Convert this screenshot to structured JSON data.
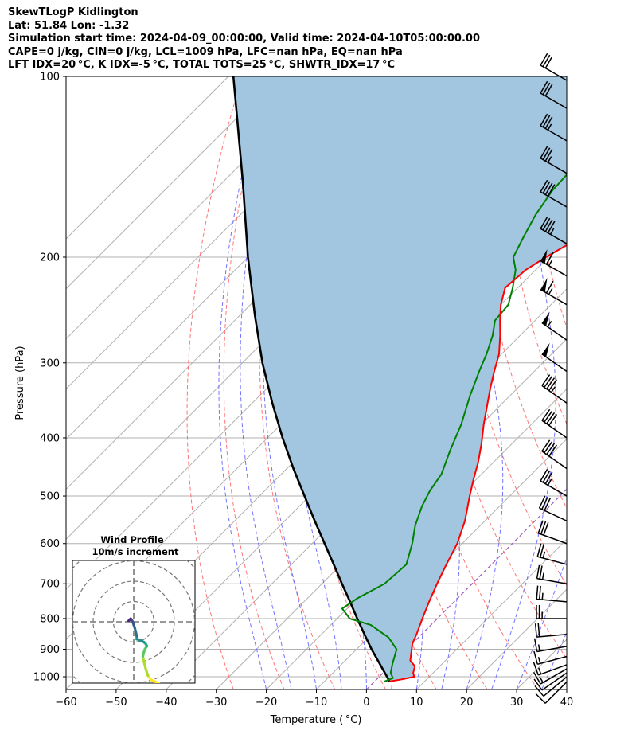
{
  "header": {
    "line1": "SkewTLogP Kidlington",
    "line2": "Lat: 51.84   Lon: -1.32",
    "line3": "Simulation start time: 2024-04-09_00:00:00, Valid time: 2024-04-10T05:00:00.00",
    "line4": "CAPE=0 j/kg, CIN=0 j/kg, LCL=1009 hPa, LFC=nan hPa, EQ=nan hPa",
    "line5": "LFT IDX=20 °C, K IDX=-5 °C, TOTAL TOTS=25 °C, SHWTR_IDX=17 °C"
  },
  "axes": {
    "xlabel": "Temperature ( °C)",
    "ylabel": "Pressure (hPa)",
    "x_ticks": [
      -60,
      -50,
      -40,
      -30,
      -20,
      -10,
      0,
      10,
      20,
      30,
      40
    ],
    "y_ticks": [
      100,
      200,
      300,
      400,
      500,
      600,
      700,
      800,
      900,
      1000
    ],
    "xlim": [
      -60,
      40
    ],
    "ylim": [
      1050,
      100
    ],
    "y_scale": "log",
    "skew_degrees": 45
  },
  "inset": {
    "title": "Wind Profile",
    "subtitle": "10m/s increment"
  },
  "colors": {
    "temperature": "#ff0000",
    "dewpoint": "#008000",
    "parcel": "#000000",
    "shade": "#a3c6e0",
    "dry_adiabat": "#ff6666",
    "moist_adiabat": "#6b6bff",
    "isotherm": "#b0b0b0",
    "grid": "#b0b0b0",
    "zero_isotherm": "#9b59b6"
  },
  "chart_data": {
    "type": "line",
    "title": "SkewTLogP Kidlington",
    "xlabel": "Temperature ( °C)",
    "ylabel": "Pressure (hPa)",
    "series": [
      {
        "key": "temperature",
        "pressure": [
          1018,
          1010,
          1000,
          985,
          960,
          940,
          920,
          900,
          880,
          850,
          800,
          750,
          700,
          650,
          600,
          550,
          500,
          470,
          440,
          410,
          380,
          350,
          330,
          310,
          290,
          270,
          255,
          240,
          225,
          210,
          200,
          185,
          170,
          150,
          140,
          125,
          115,
          100
        ],
        "temp": [
          3,
          5,
          7,
          6,
          5,
          3,
          2,
          1,
          0,
          -1,
          -3,
          -5,
          -7,
          -9,
          -11,
          -14,
          -18,
          -20.5,
          -23,
          -26,
          -29.5,
          -33,
          -35.5,
          -38,
          -40.5,
          -44,
          -47,
          -50,
          -52.5,
          -52,
          -50.5,
          -47.5,
          -44.5,
          -41,
          -39.5,
          -37.5,
          -36.5,
          -36
        ]
      },
      {
        "key": "dewpoint",
        "pressure": [
          1018,
          1005,
          985,
          950,
          900,
          860,
          820,
          800,
          770,
          740,
          700,
          650,
          600,
          560,
          520,
          490,
          460,
          420,
          380,
          340,
          310,
          290,
          270,
          255,
          240,
          225,
          210,
          200,
          185,
          170,
          155,
          140,
          125,
          110,
          100
        ],
        "temp": [
          2,
          3,
          1.5,
          0,
          -2,
          -6,
          -12,
          -17.5,
          -21,
          -20,
          -17.5,
          -17,
          -20,
          -23,
          -25.5,
          -27,
          -28,
          -31,
          -34,
          -38,
          -41,
          -43,
          -45.5,
          -48,
          -48.5,
          -51,
          -54,
          -57,
          -59,
          -61,
          -62.5,
          -63,
          -63.5,
          -64,
          -64
        ]
      },
      {
        "key": "parcel",
        "pressure": [
          1018,
          1009,
          950,
          900,
          850,
          800,
          750,
          700,
          650,
          600,
          550,
          500,
          450,
          400,
          350,
          300,
          250,
          200,
          150,
          100
        ],
        "temp": [
          3,
          2.3,
          -2.6,
          -7,
          -11.4,
          -16,
          -20.8,
          -26,
          -31.5,
          -37.5,
          -44,
          -51,
          -58.7,
          -67,
          -76,
          -86,
          -97,
          -110,
          -126,
          -149
        ]
      }
    ],
    "wind_barbs": {
      "pressure": [
        1020,
        1000,
        985,
        970,
        955,
        925,
        890,
        850,
        800,
        750,
        700,
        650,
        600,
        550,
        500,
        450,
        400,
        350,
        310,
        275,
        240,
        215,
        190,
        165,
        145,
        128,
        113,
        100
      ],
      "speed_kt": [
        10,
        10,
        10,
        15,
        15,
        15,
        15,
        20,
        25,
        25,
        25,
        25,
        30,
        30,
        35,
        40,
        40,
        45,
        50,
        55,
        65,
        65,
        45,
        40,
        35,
        35,
        30,
        30
      ],
      "direction_deg": [
        225,
        230,
        235,
        240,
        250,
        255,
        260,
        265,
        270,
        275,
        280,
        285,
        290,
        295,
        300,
        305,
        305,
        305,
        305,
        305,
        300,
        300,
        300,
        300,
        300,
        300,
        300,
        300
      ]
    },
    "hodograph": {
      "ring_increment_ms": 10,
      "rings": 3,
      "u_ms": [
        12.5,
        10.5,
        8.5,
        7.0,
        6.0,
        5.0,
        4.5,
        5.0,
        5.5,
        6.5,
        6.0,
        5.0,
        3.0,
        1.5,
        1.5,
        1.0,
        0.5,
        0.0,
        -0.5,
        -1.0,
        -1.5,
        -2.0,
        -2.5
      ],
      "v_ms": [
        -30.5,
        -29.5,
        -28.5,
        -26.5,
        -23.5,
        -19.5,
        -17.0,
        -15.0,
        -13.5,
        -12.0,
        -11.0,
        -10.0,
        -9.0,
        -8.5,
        -7.0,
        -5.0,
        -3.0,
        -1.5,
        0.0,
        1.0,
        1.5,
        1.0,
        0.5
      ]
    }
  }
}
